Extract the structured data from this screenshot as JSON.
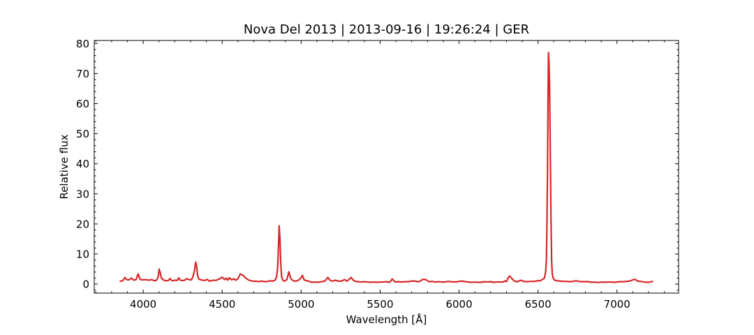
{
  "chart_data": {
    "type": "line",
    "title": "Nova Del 2013 | 2013-09-16 | 19:26:24 | GER",
    "xlabel": "Wavelength [Å]",
    "ylabel": "Relative flux",
    "xlim": [
      3690,
      7390
    ],
    "ylim": [
      -3,
      81
    ],
    "xticks": [
      4000,
      4500,
      5000,
      5500,
      6000,
      6500,
      7000
    ],
    "yticks": [
      0,
      10,
      20,
      30,
      40,
      50,
      60,
      70,
      80
    ],
    "grid": false,
    "tick_direction": "in",
    "minor_ticks": true,
    "colors": {
      "series": "#d62728"
    },
    "series": [
      {
        "x": [
          3855,
          3870,
          3885,
          3895,
          3910,
          3925,
          3940,
          3955,
          3968,
          3980,
          3995,
          4010,
          4025,
          4040,
          4055,
          4070,
          4085,
          4095,
          4101,
          4107,
          4115,
          4130,
          4145,
          4160,
          4170,
          4180,
          4190,
          4200,
          4215,
          4225,
          4235,
          4245,
          4260,
          4275,
          4290,
          4305,
          4315,
          4325,
          4332,
          4338,
          4342,
          4346,
          4352,
          4360,
          4375,
          4390,
          4405,
          4418,
          4430,
          4445,
          4460,
          4471,
          4485,
          4500,
          4515,
          4525,
          4535,
          4545,
          4560,
          4572,
          4585,
          4600,
          4615,
          4625,
          4635,
          4645,
          4660,
          4670,
          4685,
          4700,
          4715,
          4730,
          4745,
          4760,
          4775,
          4790,
          4805,
          4820,
          4835,
          4845,
          4852,
          4856,
          4861,
          4866,
          4870,
          4876,
          4885,
          4895,
          4910,
          4922,
          4935,
          4950,
          4965,
          4980,
          4995,
          5008,
          5018,
          5028,
          5040,
          5055,
          5070,
          5085,
          5100,
          5115,
          5130,
          5150,
          5169,
          5185,
          5200,
          5215,
          5235,
          5255,
          5275,
          5290,
          5300,
          5316,
          5330,
          5345,
          5360,
          5380,
          5400,
          5420,
          5440,
          5460,
          5480,
          5500,
          5520,
          5540,
          5560,
          5577,
          5595,
          5615,
          5640,
          5660,
          5680,
          5700,
          5720,
          5740,
          5755,
          5770,
          5790,
          5810,
          5830,
          5850,
          5870,
          5890,
          5910,
          5930,
          5950,
          5970,
          5990,
          6000,
          6020,
          6040,
          6060,
          6080,
          6100,
          6120,
          6140,
          6160,
          6180,
          6200,
          6220,
          6240,
          6260,
          6280,
          6290,
          6300,
          6310,
          6320,
          6335,
          6350,
          6370,
          6390,
          6410,
          6430,
          6450,
          6470,
          6490,
          6500,
          6510,
          6520,
          6530,
          6540,
          6548,
          6553,
          6556,
          6560,
          6563,
          6566,
          6570,
          6574,
          6578,
          6582,
          6586,
          6590,
          6596,
          6605,
          6620,
          6640,
          6660,
          6680,
          6700,
          6720,
          6740,
          6760,
          6780,
          6800,
          6820,
          6840,
          6860,
          6880,
          6900,
          6920,
          6940,
          6960,
          6980,
          7000,
          7020,
          7040,
          7060,
          7080,
          7100,
          7115,
          7130,
          7150,
          7170,
          7190,
          7210,
          7225
        ],
        "values": [
          1.0,
          1.1,
          2.2,
          1.5,
          1.4,
          2.0,
          1.3,
          1.5,
          3.4,
          1.6,
          1.4,
          1.5,
          1.4,
          1.3,
          1.5,
          1.1,
          1.3,
          2.5,
          5.0,
          4.0,
          2.0,
          1.3,
          1.1,
          1.2,
          1.9,
          1.2,
          1.1,
          1.3,
          1.2,
          2.1,
          1.3,
          1.2,
          1.2,
          1.8,
          1.5,
          1.4,
          2.5,
          4.5,
          7.3,
          6.0,
          4.0,
          2.5,
          1.7,
          1.5,
          1.3,
          1.2,
          1.6,
          1.0,
          1.1,
          1.3,
          1.2,
          1.5,
          1.8,
          2.3,
          1.5,
          2.0,
          1.3,
          2.1,
          1.4,
          1.8,
          1.3,
          1.8,
          3.4,
          3.1,
          2.8,
          2.2,
          1.6,
          1.3,
          1.1,
          0.9,
          1.0,
          0.8,
          1.0,
          0.9,
          0.8,
          0.9,
          1.1,
          1.0,
          1.3,
          2.5,
          6.0,
          12.0,
          19.4,
          15.0,
          8.0,
          2.5,
          1.2,
          1.0,
          1.5,
          4.1,
          1.8,
          1.1,
          1.0,
          1.2,
          1.8,
          2.9,
          1.5,
          1.2,
          1.1,
          0.8,
          0.6,
          0.7,
          0.6,
          0.7,
          0.8,
          1.0,
          2.2,
          1.2,
          1.0,
          1.3,
          1.0,
          1.0,
          1.5,
          1.0,
          1.4,
          2.2,
          1.3,
          0.9,
          0.8,
          0.7,
          0.8,
          0.7,
          0.6,
          0.7,
          0.6,
          0.7,
          0.7,
          0.8,
          0.6,
          1.7,
          0.7,
          0.8,
          0.7,
          0.8,
          0.8,
          1.0,
          1.0,
          0.8,
          1.0,
          1.6,
          1.5,
          0.8,
          0.9,
          0.7,
          0.8,
          0.7,
          0.7,
          0.9,
          0.8,
          0.7,
          0.8,
          0.9,
          1.0,
          0.8,
          0.7,
          0.6,
          0.7,
          0.6,
          0.6,
          0.8,
          0.7,
          0.8,
          0.6,
          0.7,
          0.7,
          0.7,
          1.1,
          0.8,
          2.0,
          2.7,
          1.8,
          1.0,
          0.8,
          1.3,
          0.9,
          0.8,
          0.9,
          0.9,
          1.0,
          1.2,
          1.0,
          1.3,
          1.6,
          2.0,
          4.0,
          8.0,
          18.0,
          38.0,
          60.0,
          77.0,
          73.0,
          62.0,
          42.0,
          22.0,
          8.0,
          3.5,
          2.0,
          1.3,
          1.1,
          1.0,
          0.9,
          0.9,
          0.8,
          0.9,
          1.1,
          0.9,
          0.8,
          0.8,
          0.8,
          0.6,
          0.7,
          0.5,
          0.7,
          0.6,
          0.7,
          0.7,
          0.6,
          0.7,
          0.8,
          0.8,
          0.9,
          1.0,
          1.4,
          1.6,
          1.0,
          0.9,
          0.7,
          0.6,
          0.7,
          0.9
        ]
      }
    ]
  }
}
